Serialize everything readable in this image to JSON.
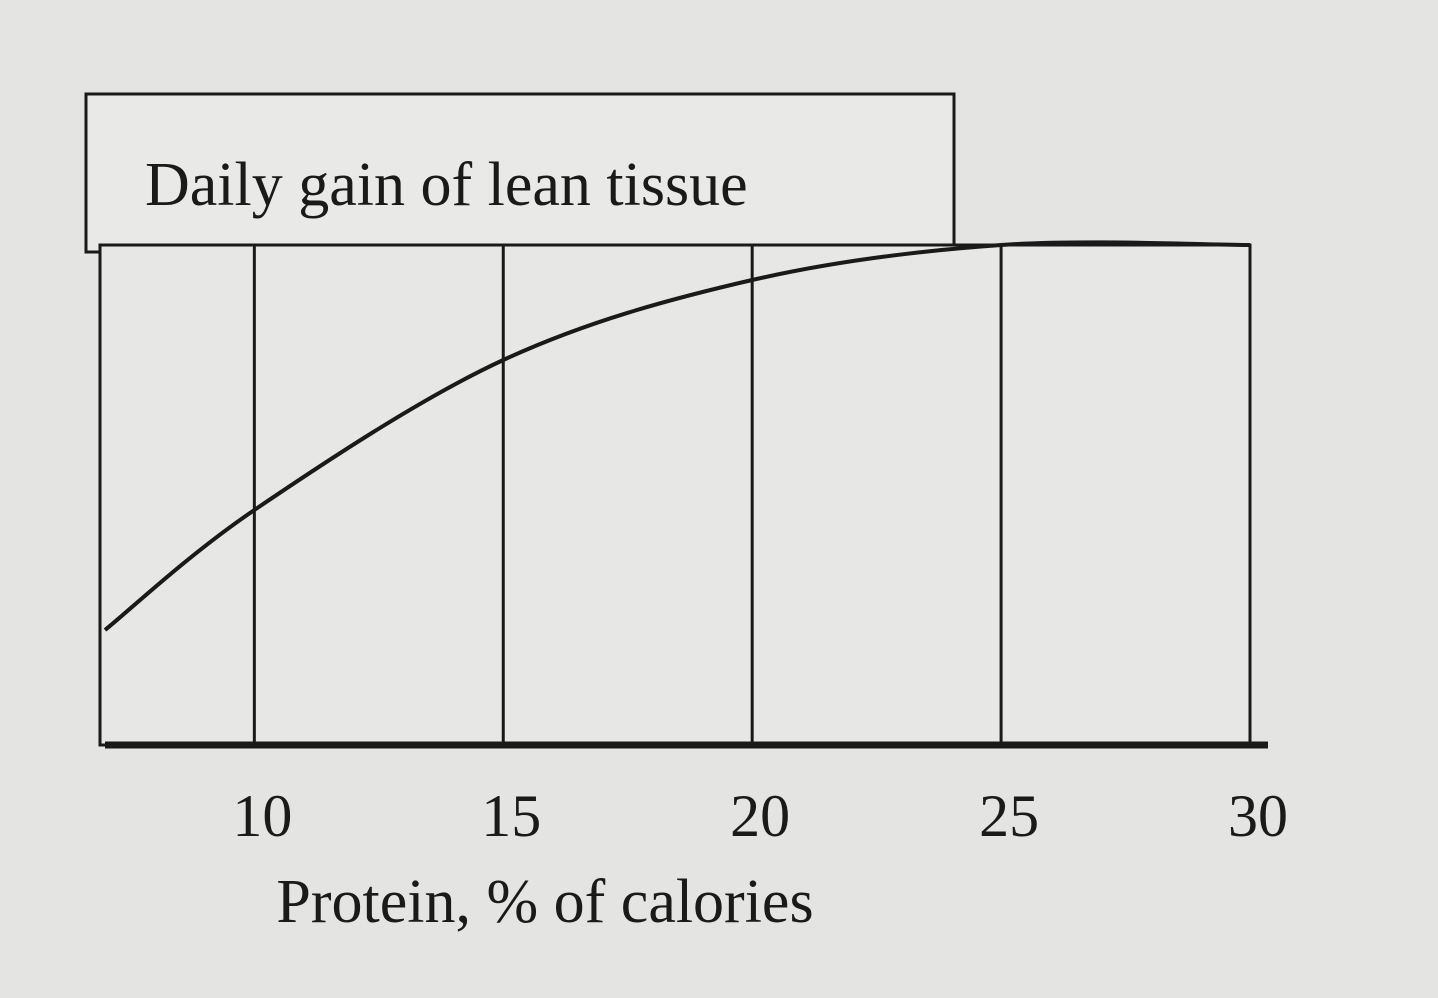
{
  "chart_data": {
    "type": "line",
    "title": "Daily gain of lean tissue",
    "x_label": "Protein, % of calories",
    "x": [
      7,
      10,
      15,
      20,
      25,
      30
    ],
    "values": [
      23,
      47,
      77,
      93,
      100,
      100
    ],
    "color": "#1a1a1a",
    "xlim": [
      7,
      30
    ],
    "xticks": [
      10,
      15,
      20,
      25,
      30
    ],
    "ylim": [
      0,
      100
    ],
    "grid": true
  }
}
